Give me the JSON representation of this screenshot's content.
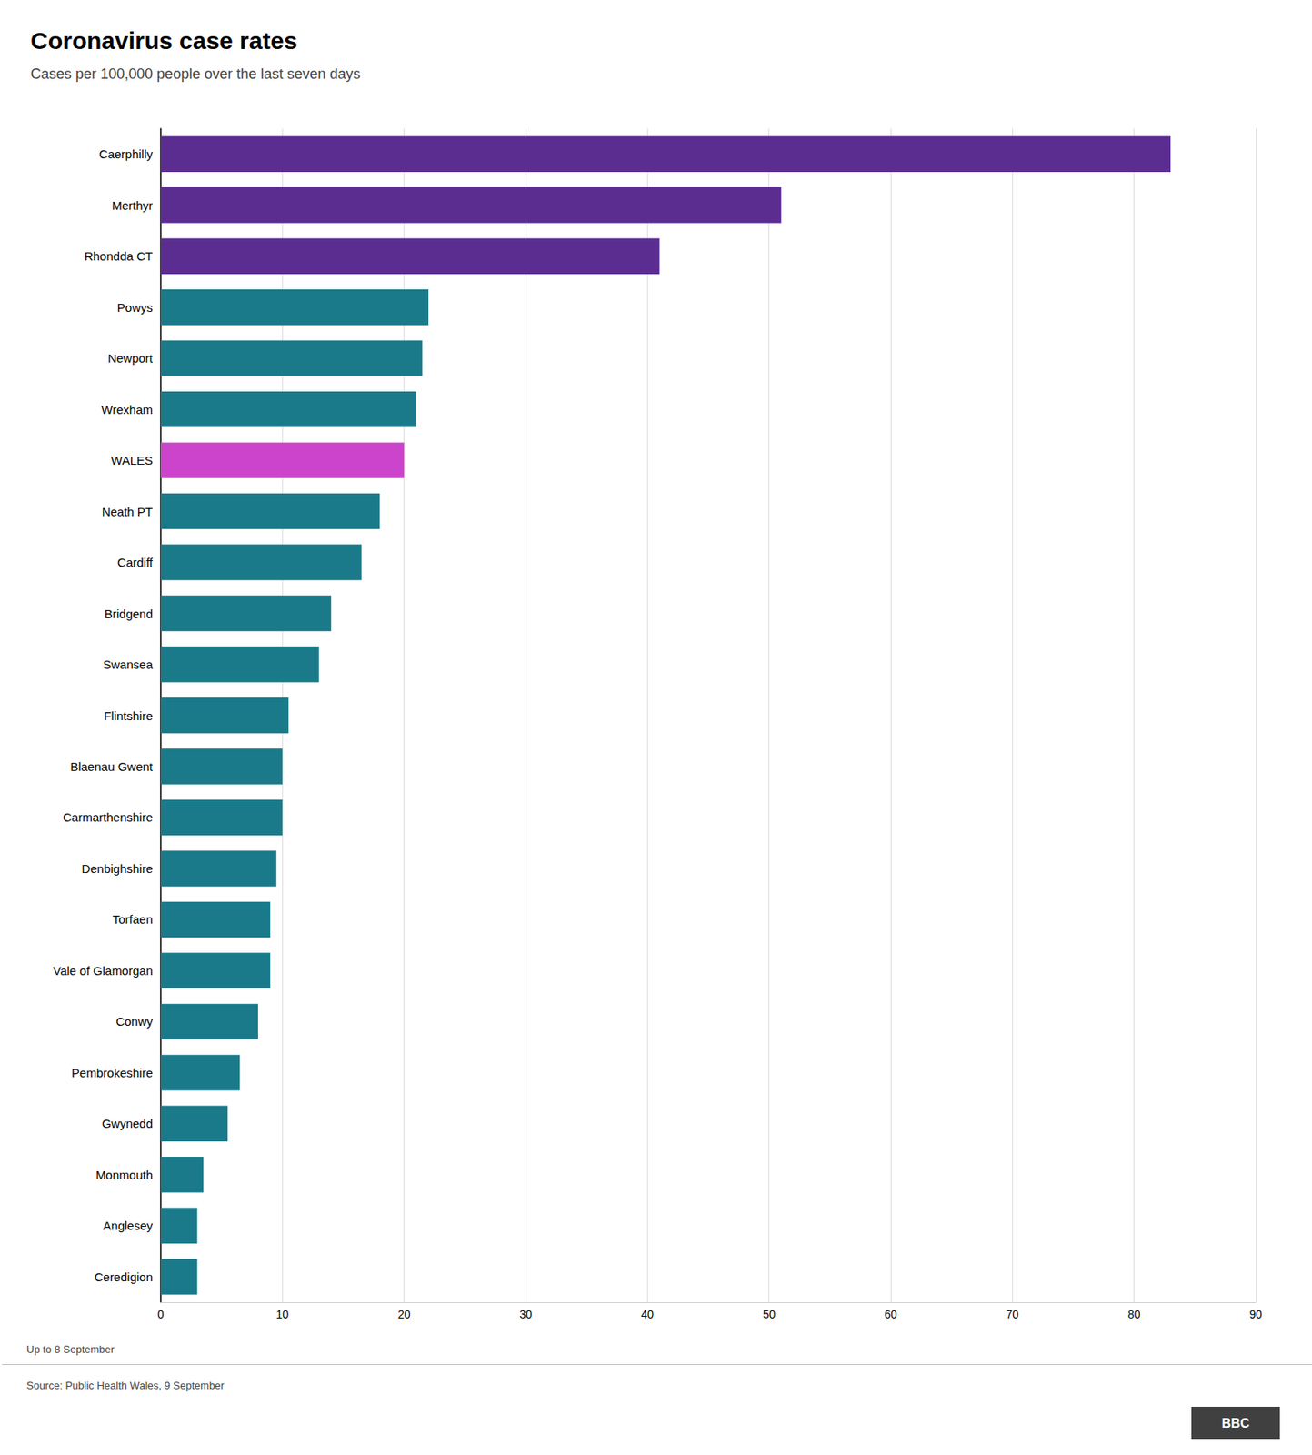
{
  "chart_data": {
    "type": "bar",
    "orientation": "horizontal",
    "title": "Coronavirus case rates",
    "subtitle": "Cases per 100,000 people over the last seven days",
    "annotations": [
      "Up to 8 September",
      "Source: Public Health Wales, 9 September",
      "BBC"
    ],
    "categories": [
      "Caerphilly",
      "Merthyr",
      "Rhondda CT",
      "Powys",
      "Newport",
      "Wrexham",
      "WALES",
      "Neath PT",
      "Cardiff",
      "Bridgend",
      "Swansea",
      "Flintshire",
      "Blaenau Gwent",
      "Carmarthenshire",
      "Denbighshire",
      "Torfaen",
      "Vale of Glamorgan",
      "Conwy",
      "Pembrokeshire",
      "Gwynedd",
      "Monmouth",
      "Anglesey",
      "Ceredigion"
    ],
    "values": [
      83,
      51,
      41,
      22,
      21.5,
      21,
      20,
      18,
      16.5,
      14,
      13,
      10.5,
      10,
      10,
      9.5,
      9,
      9,
      8,
      6.5,
      5.5,
      3.5,
      3,
      3
    ],
    "colors": [
      "#5c2d91",
      "#5c2d91",
      "#5c2d91",
      "#1a7a8a",
      "#1a7a8a",
      "#1a7a8a",
      "#cc44cc",
      "#1a7a8a",
      "#1a7a8a",
      "#1a7a8a",
      "#1a7a8a",
      "#1a7a8a",
      "#1a7a8a",
      "#1a7a8a",
      "#1a7a8a",
      "#1a7a8a",
      "#1a7a8a",
      "#1a7a8a",
      "#1a7a8a",
      "#1a7a8a",
      "#1a7a8a",
      "#1a7a8a",
      "#1a7a8a"
    ],
    "xlim": [
      0,
      90
    ],
    "xticks": [
      0,
      10,
      20,
      30,
      40,
      50,
      60,
      70,
      80,
      90
    ],
    "grid": true
  }
}
